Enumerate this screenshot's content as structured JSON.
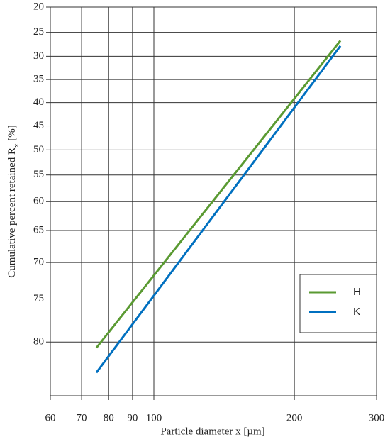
{
  "chart_data": {
    "type": "line",
    "xlabel": "Particle diameter x [µm]",
    "ylabel": {
      "text": "Cumulative percent retained  R",
      "subscript": "x",
      "unit": "[%]"
    },
    "xscale": "log",
    "yscale": "rosin-rammler",
    "xlim": [
      60,
      300
    ],
    "xticks": [
      60,
      70,
      80,
      90,
      100,
      200,
      300
    ],
    "ylim": [
      20,
      85
    ],
    "yticks": [
      20,
      25,
      30,
      35,
      40,
      45,
      50,
      55,
      60,
      65,
      70,
      75,
      80
    ],
    "grid": true,
    "legend": "lower right",
    "series": [
      {
        "name": "H",
        "color": "#5a9a32",
        "x": [
          75.3,
          251
        ],
        "values": [
          80.6,
          26.7
        ]
      },
      {
        "name": "K",
        "color": "#0070c0",
        "x": [
          75.3,
          251
        ],
        "values": [
          83.0,
          27.8
        ]
      }
    ]
  }
}
